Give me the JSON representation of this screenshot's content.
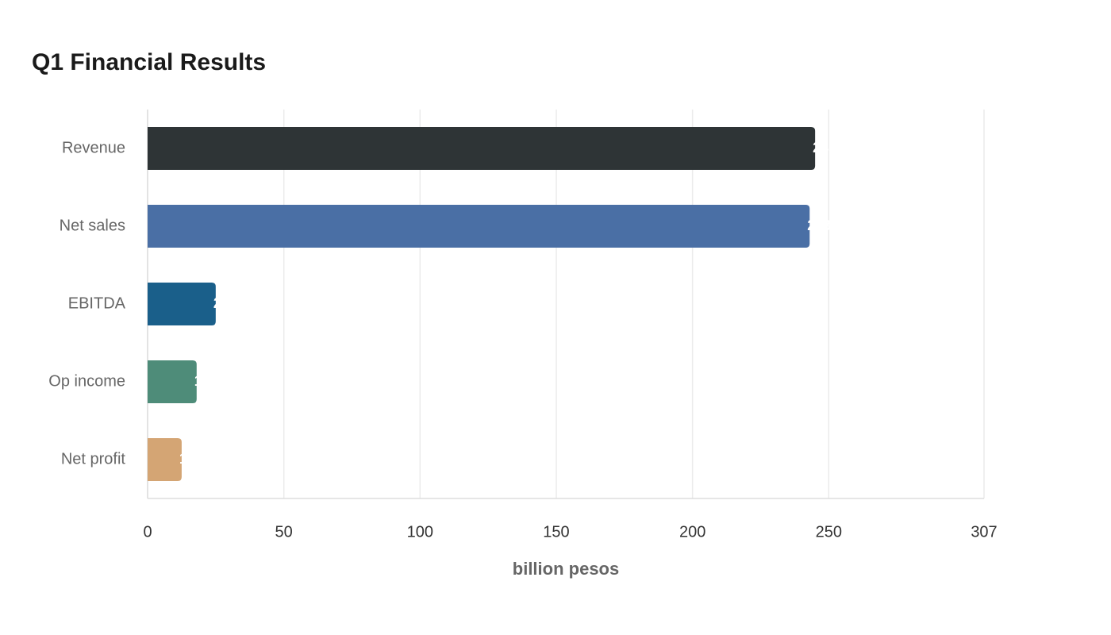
{
  "chart_data": {
    "type": "hbar",
    "title": "Q1 Financial Results",
    "categories": [
      "Revenue",
      "Net sales",
      "EBITDA",
      "Op income",
      "Net profit"
    ],
    "values": [
      245,
      243,
      25,
      18,
      12.5
    ],
    "colors": [
      "#2e3436",
      "#4a6fa5",
      "#1a5f8a",
      "#4e8c79",
      "#d4a574"
    ],
    "xlabel": "billion pesos",
    "xlim": [
      0,
      307
    ],
    "xticks": [
      0,
      50,
      100,
      150,
      200,
      250,
      307
    ],
    "grid": true
  }
}
